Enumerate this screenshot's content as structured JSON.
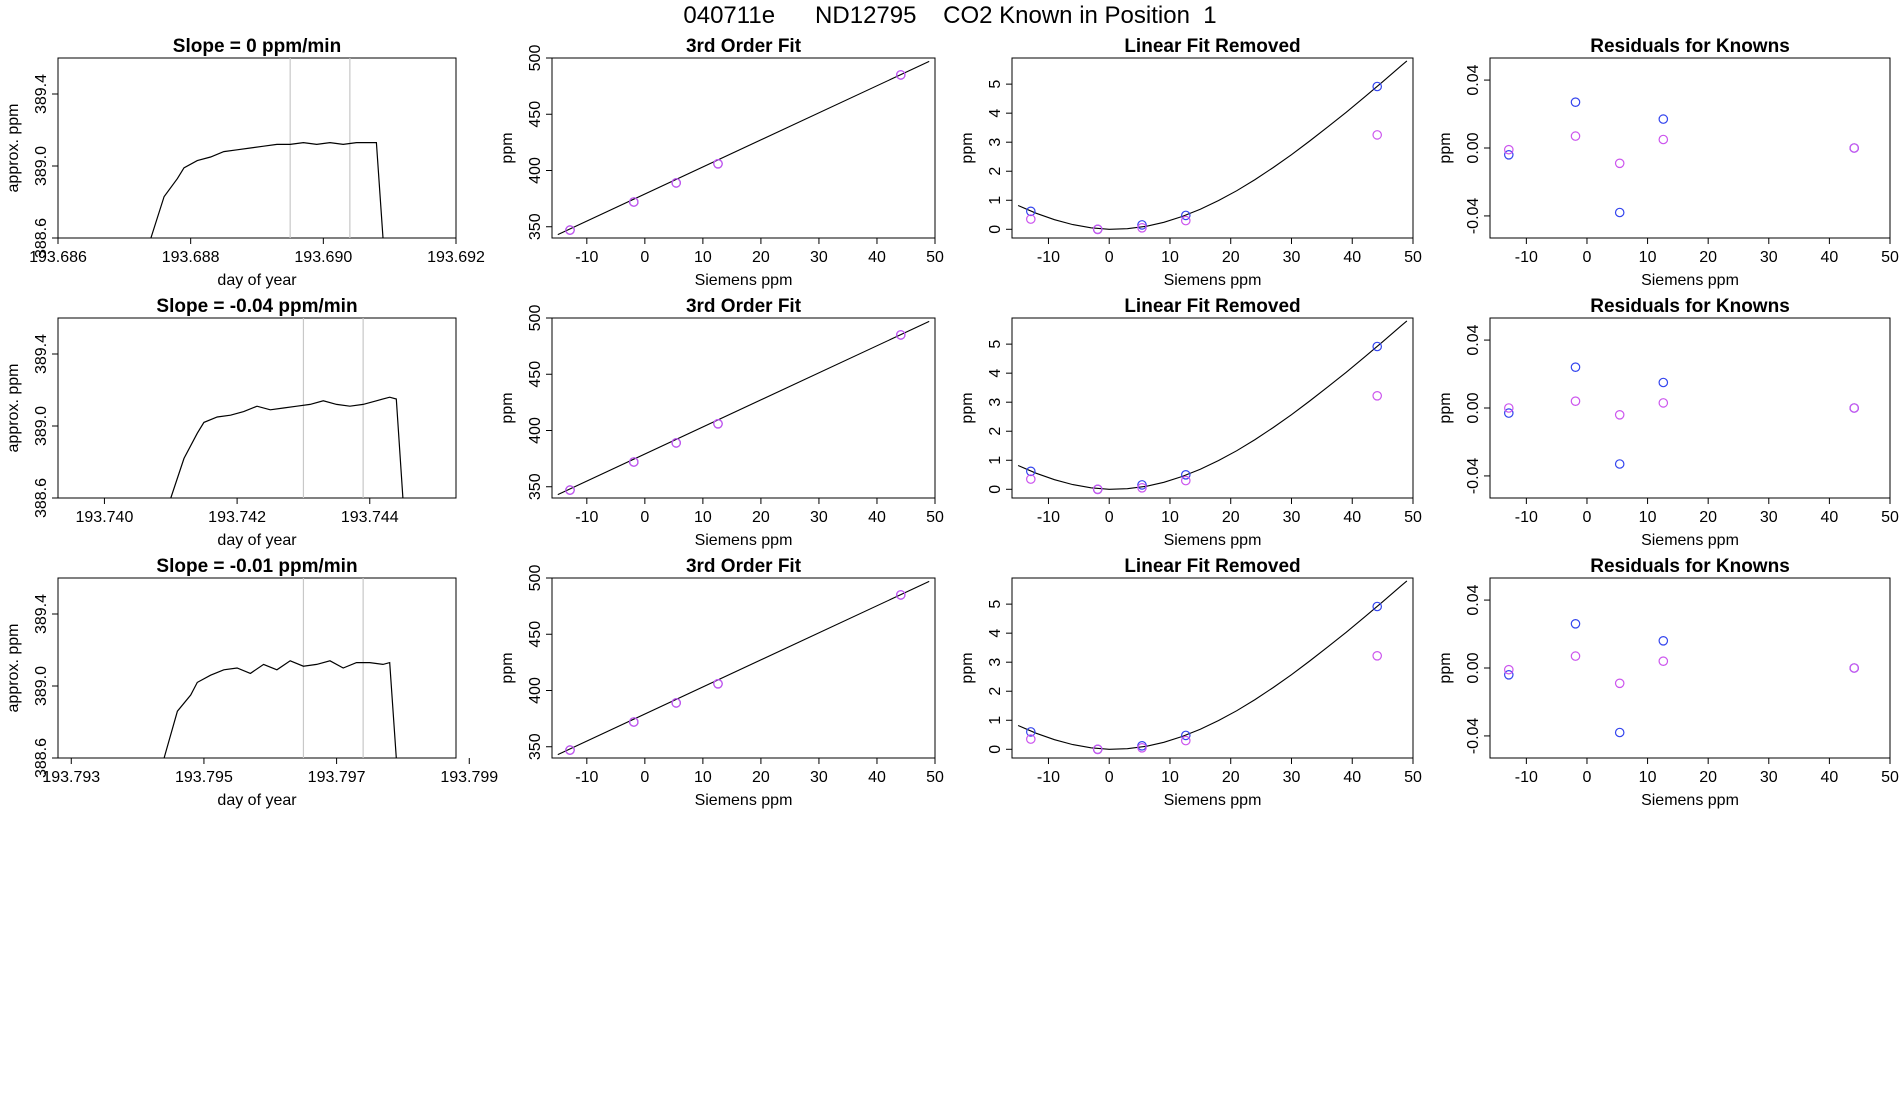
{
  "page": {
    "title": "040711e      ND12795    CO2 Known in Position  1"
  },
  "chart_data": [
    {
      "type": "line",
      "panel": "trace-1",
      "title": "Slope =  0  ppm/min",
      "xlabel": "day of year",
      "ylabel": "approx. ppm",
      "xlim": [
        193.686,
        193.692
      ],
      "ylim": [
        388.6,
        389.6
      ],
      "xticks": [
        "193.686",
        "193.688",
        "193.690",
        "193.692"
      ],
      "xtick_values": [
        193.686,
        193.688,
        193.69,
        193.692
      ],
      "yticks": [
        "388.6",
        "389.0",
        "389.4"
      ],
      "ytick_values": [
        388.6,
        389.0,
        389.4
      ],
      "vlines": [
        193.6895,
        193.6904
      ],
      "series": [
        {
          "color": "#000000",
          "x": [
            193.6874,
            193.6876,
            193.6878,
            193.6879,
            193.6881,
            193.6883,
            193.6885,
            193.6887,
            193.6889,
            193.6891,
            193.6893,
            193.6895,
            193.6897,
            193.6899,
            193.6901,
            193.6903,
            193.6905,
            193.6907,
            193.6908,
            193.6909
          ],
          "y": [
            388.6,
            388.83,
            388.93,
            388.99,
            389.03,
            389.05,
            389.08,
            389.09,
            389.1,
            389.11,
            389.12,
            389.12,
            389.13,
            389.12,
            389.13,
            389.12,
            389.13,
            389.13,
            389.13,
            388.6
          ]
        }
      ]
    },
    {
      "type": "scatter",
      "panel": "fit-1",
      "title": "3rd Order Fit",
      "xlabel": "Siemens ppm",
      "ylabel": "ppm",
      "xlim": [
        -16,
        50
      ],
      "ylim": [
        340,
        500
      ],
      "xticks": [
        "-10",
        "0",
        "10",
        "20",
        "30",
        "40",
        "50"
      ],
      "xtick_values": [
        -10,
        0,
        10,
        20,
        30,
        40,
        50
      ],
      "yticks": [
        "350",
        "400",
        "450",
        "500"
      ],
      "ytick_values": [
        350,
        400,
        450,
        500
      ],
      "curve": {
        "color": "#000000",
        "x": [
          -15,
          49
        ],
        "y": [
          343,
          497
        ]
      },
      "series": [
        {
          "color": "#3344ee",
          "x": [
            -12.9,
            -1.9,
            5.4,
            12.6,
            44.1
          ],
          "y": [
            347,
            372,
            389,
            406,
            485
          ]
        },
        {
          "color": "#cc55ee",
          "x": [
            -12.9,
            -1.9,
            5.4,
            12.6,
            44.1
          ],
          "y": [
            347,
            372,
            389,
            406,
            485
          ]
        }
      ]
    },
    {
      "type": "scatter",
      "panel": "linear-1",
      "title": "Linear Fit Removed",
      "xlabel": "Siemens ppm",
      "ylabel": "ppm",
      "xlim": [
        -16,
        50
      ],
      "ylim": [
        -0.3,
        5.9
      ],
      "xticks": [
        "-10",
        "0",
        "10",
        "20",
        "30",
        "40",
        "50"
      ],
      "xtick_values": [
        -10,
        0,
        10,
        20,
        30,
        40,
        50
      ],
      "yticks": [
        "0",
        "1",
        "2",
        "3",
        "4",
        "5"
      ],
      "ytick_values": [
        0,
        1,
        2,
        3,
        4,
        5
      ],
      "curve": {
        "color": "#000000",
        "x": [
          -15,
          -12,
          -9,
          -6,
          -3,
          0,
          3,
          6,
          9,
          12,
          15,
          18,
          21,
          24,
          27,
          30,
          33,
          36,
          39,
          42,
          45,
          48,
          49
        ],
        "y": [
          0.82,
          0.55,
          0.33,
          0.16,
          0.05,
          0.0,
          0.02,
          0.1,
          0.24,
          0.44,
          0.69,
          0.99,
          1.33,
          1.71,
          2.13,
          2.57,
          3.04,
          3.53,
          4.03,
          4.55,
          5.08,
          5.62,
          5.8
        ]
      },
      "series": [
        {
          "color": "#3344ee",
          "x": [
            -12.9,
            -1.9,
            5.4,
            12.6,
            44.1
          ],
          "y": [
            0.62,
            0.0,
            0.15,
            0.48,
            4.92
          ]
        },
        {
          "color": "#cc55ee",
          "x": [
            -12.9,
            -1.9,
            5.4,
            12.6,
            44.1
          ],
          "y": [
            0.35,
            0.0,
            0.05,
            0.3,
            3.25
          ]
        }
      ]
    },
    {
      "type": "scatter",
      "panel": "residual-1",
      "title": "Residuals for Knowns",
      "xlabel": "Siemens ppm",
      "ylabel": "ppm",
      "xlim": [
        -16,
        50
      ],
      "ylim": [
        -0.053,
        0.053
      ],
      "xticks": [
        "-10",
        "0",
        "10",
        "20",
        "30",
        "40",
        "50"
      ],
      "xtick_values": [
        -10,
        0,
        10,
        20,
        30,
        40,
        50
      ],
      "yticks": [
        "-0.04",
        "0.00",
        "0.04"
      ],
      "ytick_values": [
        -0.04,
        0.0,
        0.04
      ],
      "series": [
        {
          "color": "#3344ee",
          "x": [
            -12.9,
            -1.9,
            5.4,
            12.6,
            44.1
          ],
          "y": [
            -0.004,
            0.027,
            -0.038,
            0.017,
            0.0
          ]
        },
        {
          "color": "#cc55ee",
          "x": [
            -12.9,
            -1.9,
            5.4,
            12.6,
            44.1
          ],
          "y": [
            -0.001,
            0.007,
            -0.009,
            0.005,
            0.0
          ]
        }
      ]
    },
    {
      "type": "line",
      "panel": "trace-2",
      "title": "Slope =  -0.04  ppm/min",
      "xlabel": "day of year",
      "ylabel": "approx. ppm",
      "xlim": [
        193.7393,
        193.7453
      ],
      "ylim": [
        388.6,
        389.6
      ],
      "xticks": [
        "193.740",
        "193.742",
        "193.744"
      ],
      "xtick_values": [
        193.74,
        193.742,
        193.744
      ],
      "yticks": [
        "388.6",
        "389.0",
        "389.4"
      ],
      "ytick_values": [
        388.6,
        389.0,
        389.4
      ],
      "vlines": [
        193.743,
        193.7439
      ],
      "series": [
        {
          "color": "#000000",
          "x": [
            193.741,
            193.7412,
            193.7414,
            193.7415,
            193.7417,
            193.7419,
            193.7421,
            193.7423,
            193.7425,
            193.7427,
            193.7429,
            193.7431,
            193.7433,
            193.7435,
            193.7437,
            193.7439,
            193.7441,
            193.7443,
            193.7444,
            193.7445
          ],
          "y": [
            388.6,
            388.82,
            388.96,
            389.02,
            389.05,
            389.06,
            389.08,
            389.11,
            389.09,
            389.1,
            389.11,
            389.12,
            389.14,
            389.12,
            389.11,
            389.12,
            389.14,
            389.16,
            389.15,
            388.6
          ]
        }
      ]
    },
    {
      "type": "scatter",
      "panel": "fit-2",
      "title": "3rd Order Fit",
      "xlabel": "Siemens ppm",
      "ylabel": "ppm",
      "xlim": [
        -16,
        50
      ],
      "ylim": [
        340,
        500
      ],
      "xticks": [
        "-10",
        "0",
        "10",
        "20",
        "30",
        "40",
        "50"
      ],
      "xtick_values": [
        -10,
        0,
        10,
        20,
        30,
        40,
        50
      ],
      "yticks": [
        "350",
        "400",
        "450",
        "500"
      ],
      "ytick_values": [
        350,
        400,
        450,
        500
      ],
      "curve": {
        "color": "#000000",
        "x": [
          -15,
          49
        ],
        "y": [
          343,
          497
        ]
      },
      "series": [
        {
          "color": "#3344ee",
          "x": [
            -12.9,
            -1.9,
            5.4,
            12.6,
            44.1
          ],
          "y": [
            347,
            372,
            389,
            406,
            485
          ]
        },
        {
          "color": "#cc55ee",
          "x": [
            -12.9,
            -1.9,
            5.4,
            12.6,
            44.1
          ],
          "y": [
            347,
            372,
            389,
            406,
            485
          ]
        }
      ]
    },
    {
      "type": "scatter",
      "panel": "linear-2",
      "title": "Linear Fit Removed",
      "xlabel": "Siemens ppm",
      "ylabel": "ppm",
      "xlim": [
        -16,
        50
      ],
      "ylim": [
        -0.3,
        5.9
      ],
      "xticks": [
        "-10",
        "0",
        "10",
        "20",
        "30",
        "40",
        "50"
      ],
      "xtick_values": [
        -10,
        0,
        10,
        20,
        30,
        40,
        50
      ],
      "yticks": [
        "0",
        "1",
        "2",
        "3",
        "4",
        "5"
      ],
      "ytick_values": [
        0,
        1,
        2,
        3,
        4,
        5
      ],
      "curve": {
        "color": "#000000",
        "x": [
          -15,
          -12,
          -9,
          -6,
          -3,
          0,
          3,
          6,
          9,
          12,
          15,
          18,
          21,
          24,
          27,
          30,
          33,
          36,
          39,
          42,
          45,
          48,
          49
        ],
        "y": [
          0.82,
          0.55,
          0.33,
          0.16,
          0.05,
          0.0,
          0.02,
          0.1,
          0.24,
          0.44,
          0.69,
          0.99,
          1.33,
          1.71,
          2.13,
          2.57,
          3.04,
          3.53,
          4.03,
          4.55,
          5.08,
          5.62,
          5.8
        ]
      },
      "series": [
        {
          "color": "#3344ee",
          "x": [
            -12.9,
            -1.9,
            5.4,
            12.6,
            44.1
          ],
          "y": [
            0.62,
            0.0,
            0.15,
            0.5,
            4.92
          ]
        },
        {
          "color": "#cc55ee",
          "x": [
            -12.9,
            -1.9,
            5.4,
            12.6,
            44.1
          ],
          "y": [
            0.35,
            0.0,
            0.05,
            0.3,
            3.22
          ]
        }
      ]
    },
    {
      "type": "scatter",
      "panel": "residual-2",
      "title": "Residuals for Knowns",
      "xlabel": "Siemens ppm",
      "ylabel": "ppm",
      "xlim": [
        -16,
        50
      ],
      "ylim": [
        -0.053,
        0.053
      ],
      "xticks": [
        "-10",
        "0",
        "10",
        "20",
        "30",
        "40",
        "50"
      ],
      "xtick_values": [
        -10,
        0,
        10,
        20,
        30,
        40,
        50
      ],
      "yticks": [
        "-0.04",
        "0.00",
        "0.04"
      ],
      "ytick_values": [
        -0.04,
        0.0,
        0.04
      ],
      "series": [
        {
          "color": "#3344ee",
          "x": [
            -12.9,
            -1.9,
            5.4,
            12.6,
            44.1
          ],
          "y": [
            -0.003,
            0.024,
            -0.033,
            0.015,
            0.0
          ]
        },
        {
          "color": "#cc55ee",
          "x": [
            -12.9,
            -1.9,
            5.4,
            12.6,
            44.1
          ],
          "y": [
            0.0,
            0.004,
            -0.004,
            0.003,
            0.0
          ]
        }
      ]
    },
    {
      "type": "line",
      "panel": "trace-3",
      "title": "Slope =  -0.01  ppm/min",
      "xlabel": "day of year",
      "ylabel": "approx. ppm",
      "xlim": [
        193.7928,
        193.7988
      ],
      "ylim": [
        388.6,
        389.6
      ],
      "xticks": [
        "193.793",
        "193.795",
        "193.797",
        "193.799"
      ],
      "xtick_values": [
        193.793,
        193.795,
        193.797,
        193.799
      ],
      "yticks": [
        "388.6",
        "389.0",
        "389.4"
      ],
      "ytick_values": [
        388.6,
        389.0,
        389.4
      ],
      "vlines": [
        193.7965,
        193.7974
      ],
      "series": [
        {
          "color": "#000000",
          "x": [
            193.7944,
            193.7946,
            193.7948,
            193.7949,
            193.7951,
            193.7953,
            193.7955,
            193.7957,
            193.7959,
            193.7961,
            193.7963,
            193.7965,
            193.7967,
            193.7969,
            193.7971,
            193.7973,
            193.7975,
            193.7977,
            193.7978,
            193.7979
          ],
          "y": [
            388.6,
            388.86,
            388.95,
            389.02,
            389.06,
            389.09,
            389.1,
            389.07,
            389.12,
            389.09,
            389.14,
            389.11,
            389.12,
            389.14,
            389.1,
            389.13,
            389.13,
            389.12,
            389.13,
            388.6
          ]
        }
      ]
    },
    {
      "type": "scatter",
      "panel": "fit-3",
      "title": "3rd Order Fit",
      "xlabel": "Siemens ppm",
      "ylabel": "ppm",
      "xlim": [
        -16,
        50
      ],
      "ylim": [
        340,
        500
      ],
      "xticks": [
        "-10",
        "0",
        "10",
        "20",
        "30",
        "40",
        "50"
      ],
      "xtick_values": [
        -10,
        0,
        10,
        20,
        30,
        40,
        50
      ],
      "yticks": [
        "350",
        "400",
        "450",
        "500"
      ],
      "ytick_values": [
        350,
        400,
        450,
        500
      ],
      "curve": {
        "color": "#000000",
        "x": [
          -15,
          49
        ],
        "y": [
          343,
          497
        ]
      },
      "series": [
        {
          "color": "#3344ee",
          "x": [
            -12.9,
            -1.9,
            5.4,
            12.6,
            44.1
          ],
          "y": [
            347,
            372,
            389,
            406,
            485
          ]
        },
        {
          "color": "#cc55ee",
          "x": [
            -12.9,
            -1.9,
            5.4,
            12.6,
            44.1
          ],
          "y": [
            347,
            372,
            389,
            406,
            485
          ]
        }
      ]
    },
    {
      "type": "scatter",
      "panel": "linear-3",
      "title": "Linear Fit Removed",
      "xlabel": "Siemens ppm",
      "ylabel": "ppm",
      "xlim": [
        -16,
        50
      ],
      "ylim": [
        -0.3,
        5.9
      ],
      "xticks": [
        "-10",
        "0",
        "10",
        "20",
        "30",
        "40",
        "50"
      ],
      "xtick_values": [
        -10,
        0,
        10,
        20,
        30,
        40,
        50
      ],
      "yticks": [
        "0",
        "1",
        "2",
        "3",
        "4",
        "5"
      ],
      "ytick_values": [
        0,
        1,
        2,
        3,
        4,
        5
      ],
      "curve": {
        "color": "#000000",
        "x": [
          -15,
          -12,
          -9,
          -6,
          -3,
          0,
          3,
          6,
          9,
          12,
          15,
          18,
          21,
          24,
          27,
          30,
          33,
          36,
          39,
          42,
          45,
          48,
          49
        ],
        "y": [
          0.82,
          0.55,
          0.33,
          0.16,
          0.05,
          0.0,
          0.02,
          0.1,
          0.24,
          0.44,
          0.69,
          0.99,
          1.33,
          1.71,
          2.13,
          2.57,
          3.04,
          3.53,
          4.03,
          4.55,
          5.08,
          5.62,
          5.8
        ]
      },
      "series": [
        {
          "color": "#3344ee",
          "x": [
            -12.9,
            -1.9,
            5.4,
            12.6,
            44.1
          ],
          "y": [
            0.6,
            0.0,
            0.12,
            0.48,
            4.92
          ]
        },
        {
          "color": "#cc55ee",
          "x": [
            -12.9,
            -1.9,
            5.4,
            12.6,
            44.1
          ],
          "y": [
            0.35,
            0.0,
            0.05,
            0.3,
            3.22
          ]
        }
      ]
    },
    {
      "type": "scatter",
      "panel": "residual-3",
      "title": "Residuals for Knowns",
      "xlabel": "Siemens ppm",
      "ylabel": "ppm",
      "xlim": [
        -16,
        50
      ],
      "ylim": [
        -0.053,
        0.053
      ],
      "xticks": [
        "-10",
        "0",
        "10",
        "20",
        "30",
        "40",
        "50"
      ],
      "xtick_values": [
        -10,
        0,
        10,
        20,
        30,
        40,
        50
      ],
      "yticks": [
        "-0.04",
        "0.00",
        "0.04"
      ],
      "ytick_values": [
        -0.04,
        0.0,
        0.04
      ],
      "series": [
        {
          "color": "#3344ee",
          "x": [
            -12.9,
            -1.9,
            5.4,
            12.6,
            44.1
          ],
          "y": [
            -0.004,
            0.026,
            -0.038,
            0.016,
            0.0
          ]
        },
        {
          "color": "#cc55ee",
          "x": [
            -12.9,
            -1.9,
            5.4,
            12.6,
            44.1
          ],
          "y": [
            -0.001,
            0.007,
            -0.009,
            0.004,
            0.0
          ]
        }
      ]
    }
  ]
}
